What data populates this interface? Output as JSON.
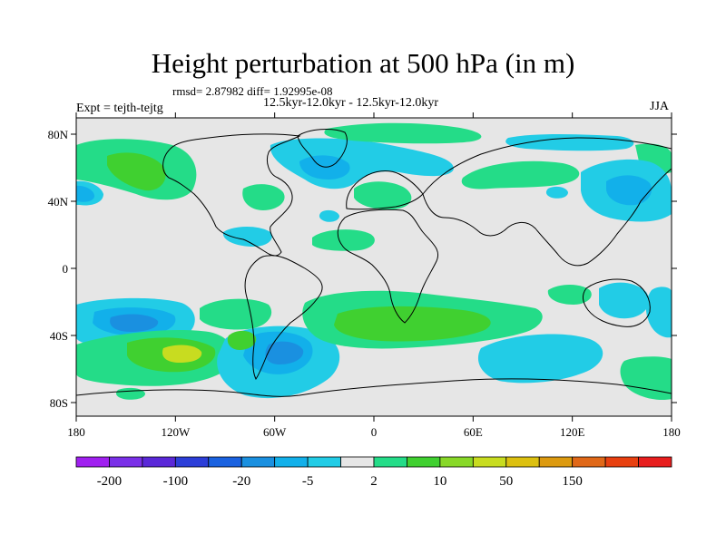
{
  "title": "Height perturbation at 500 hPa (in m)",
  "stats": "rmsd= 2.87982 diff= 1.92995e-08",
  "expt": "Expt = tejth-tejtg",
  "period": "12.5kyr-12.0kyr - 12.5kyr-12.0kyr",
  "season": "JJA",
  "lat_ticks": [
    "80N",
    "40N",
    "0",
    "40S",
    "80S"
  ],
  "lon_ticks": [
    "180",
    "120W",
    "60W",
    "0",
    "60E",
    "120E",
    "180"
  ],
  "colorbar": {
    "colors": [
      "#a020f0",
      "#7a30e8",
      "#5a28d8",
      "#2c3ed8",
      "#1a62e0",
      "#1a90e0",
      "#12b0ea",
      "#22cce6",
      "#e6e6e6",
      "#24dc88",
      "#40d030",
      "#88d828",
      "#c8dc20",
      "#dcc010",
      "#dc9a10",
      "#e06818",
      "#e84010",
      "#e81e1e"
    ],
    "labels": [
      "-200",
      "-100",
      "-20",
      "-5",
      "2",
      "10",
      "50",
      "150"
    ]
  },
  "palette": {
    "background": "#e6e6e6",
    "light_blue": "#22cce6",
    "mid_blue": "#12b0ea",
    "dark_blue": "#1a90e0",
    "deep_blue": "#1a62e0",
    "teal": "#24dc88",
    "green": "#40d030",
    "yellowgreen": "#c8dc20"
  }
}
